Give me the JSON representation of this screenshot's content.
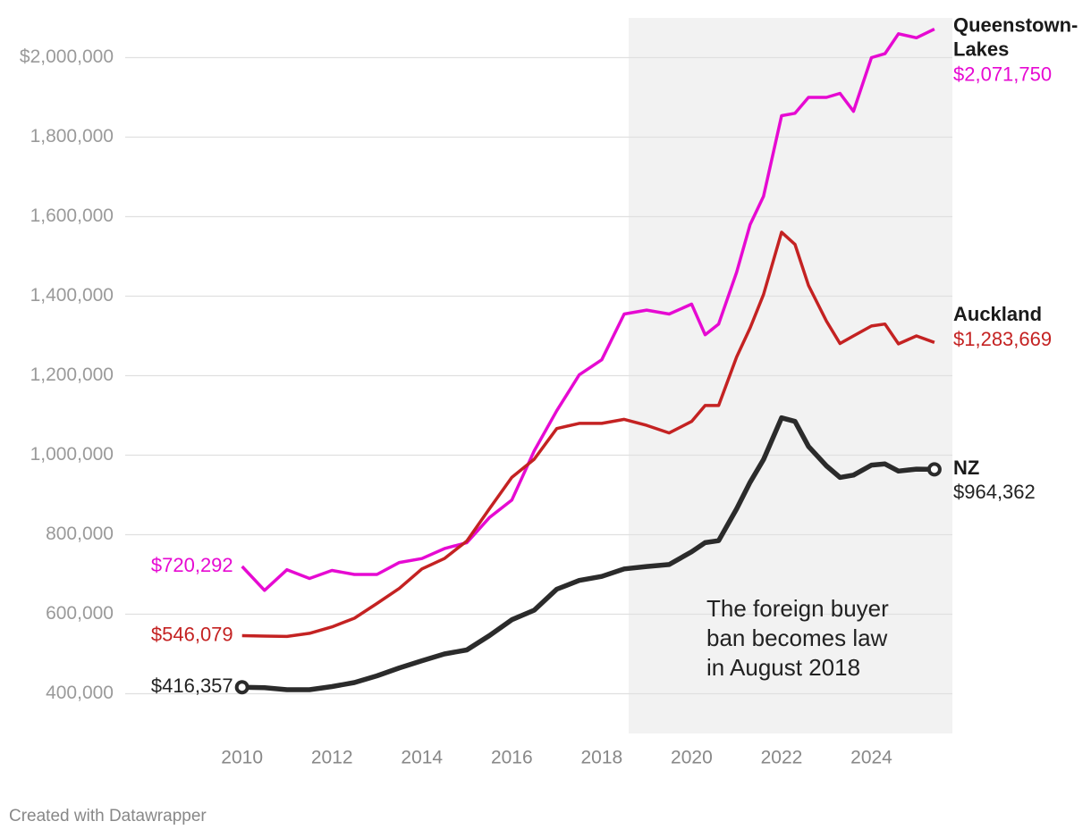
{
  "chart_data": {
    "type": "line",
    "x": [
      2010,
      2010.5,
      2011,
      2011.5,
      2012,
      2012.5,
      2013,
      2013.5,
      2014,
      2014.5,
      2015,
      2015.5,
      2016,
      2016.5,
      2017,
      2017.5,
      2018,
      2018.5,
      2019,
      2019.5,
      2020,
      2020.3,
      2020.6,
      2021,
      2021.3,
      2021.6,
      2022,
      2022.3,
      2022.6,
      2023,
      2023.3,
      2023.6,
      2024,
      2024.3,
      2024.6,
      2025,
      2025.4
    ],
    "series": [
      {
        "name": "Queenstown-Lakes",
        "color": "#e60ad2",
        "values": [
          720292,
          660000,
          712000,
          690000,
          710000,
          700000,
          700000,
          730000,
          740000,
          765000,
          780000,
          843000,
          887000,
          1011000,
          1112000,
          1202000,
          1240000,
          1355000,
          1365000,
          1355000,
          1380000,
          1303000,
          1330000,
          1460000,
          1580000,
          1651000,
          1854000,
          1860000,
          1900000,
          1900000,
          1910000,
          1865000,
          2000000,
          2010000,
          2060000,
          2050000,
          2071750
        ],
        "value_labels": [
          "$720,292",
          null,
          null,
          null,
          null,
          null,
          null,
          null,
          null,
          null,
          null,
          null,
          null,
          null,
          null,
          null,
          null,
          null,
          null,
          null,
          null,
          null,
          null,
          null,
          null,
          null,
          null,
          null,
          null,
          null,
          null,
          null,
          null,
          null,
          null,
          null,
          "$2,071,750"
        ]
      },
      {
        "name": "Auckland",
        "color": "#c42222",
        "values": [
          546079,
          545000,
          544000,
          552000,
          568000,
          590000,
          627000,
          665000,
          714000,
          740000,
          784000,
          865000,
          944000,
          990000,
          1067000,
          1080000,
          1080000,
          1090000,
          1075000,
          1056000,
          1085000,
          1125000,
          1125000,
          1247000,
          1320000,
          1404000,
          1561000,
          1530000,
          1427000,
          1337000,
          1281000,
          1300000,
          1325000,
          1330000,
          1280000,
          1300000,
          1283669
        ],
        "value_labels": [
          "$546,079",
          null,
          null,
          null,
          null,
          null,
          null,
          null,
          null,
          null,
          null,
          null,
          null,
          null,
          null,
          null,
          null,
          null,
          null,
          null,
          null,
          null,
          null,
          null,
          null,
          null,
          null,
          null,
          null,
          null,
          null,
          null,
          null,
          null,
          null,
          null,
          "$1,283,669"
        ]
      },
      {
        "name": "NZ",
        "color": "#2b2b2b",
        "values": [
          416357,
          415000,
          410000,
          410000,
          418000,
          428000,
          445000,
          465000,
          483000,
          500000,
          510000,
          546000,
          586000,
          610000,
          663000,
          685000,
          695000,
          714000,
          720000,
          725000,
          757000,
          780000,
          785000,
          865000,
          932000,
          989000,
          1094000,
          1085000,
          1022000,
          973000,
          944000,
          950000,
          975000,
          978000,
          960000,
          965000,
          964362
        ],
        "value_labels": [
          "$416,357",
          null,
          null,
          null,
          null,
          null,
          null,
          null,
          null,
          null,
          null,
          null,
          null,
          null,
          null,
          null,
          null,
          null,
          null,
          null,
          null,
          null,
          null,
          null,
          null,
          null,
          null,
          null,
          null,
          null,
          null,
          null,
          null,
          null,
          null,
          null,
          "$964,362"
        ]
      }
    ],
    "xlim": [
      2007.6,
      2025.8
    ],
    "ylim": [
      300000,
      2100000
    ],
    "xticks": [
      2010,
      2012,
      2014,
      2016,
      2018,
      2020,
      2022,
      2024
    ],
    "yticks": [
      {
        "value": 400000,
        "label": "400,000"
      },
      {
        "value": 600000,
        "label": "600,000"
      },
      {
        "value": 800000,
        "label": "800,000"
      },
      {
        "value": 1000000,
        "label": "1,000,000"
      },
      {
        "value": 1200000,
        "label": "1,200,000"
      },
      {
        "value": 1400000,
        "label": "1,400,000"
      },
      {
        "value": 1600000,
        "label": "1,600,000"
      },
      {
        "value": 1800000,
        "label": "1,800,000"
      },
      {
        "value": 2000000,
        "label": "$2,000,000"
      }
    ],
    "grid": true,
    "highlight_start": 2018.6,
    "annotation": [
      "The foreign buyer",
      "ban becomes law",
      "in August 2018"
    ],
    "footer": "Created with Datawrapper"
  }
}
